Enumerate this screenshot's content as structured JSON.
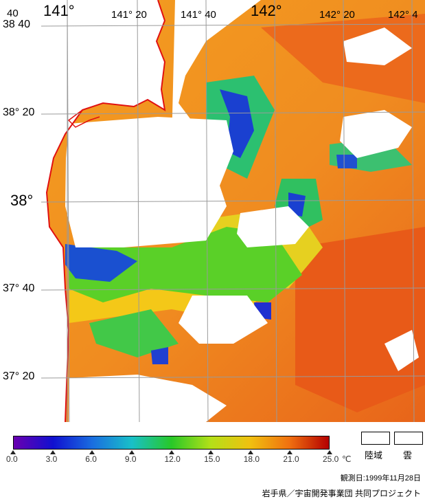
{
  "map": {
    "lon_labels": [
      {
        "text": "40",
        "size": "small"
      },
      {
        "text": "141°",
        "size": "big"
      },
      {
        "text": "141° 20",
        "size": "small"
      },
      {
        "text": "141° 40",
        "size": "small"
      },
      {
        "text": "142°",
        "size": "big"
      },
      {
        "text": "142° 20",
        "size": "small"
      },
      {
        "text": "142° 4",
        "size": "small"
      }
    ],
    "lat_labels": [
      {
        "text": "38  40"
      },
      {
        "text": "38° 20"
      },
      {
        "text": "38°"
      },
      {
        "text": "37° 40"
      },
      {
        "text": "37° 20"
      }
    ]
  },
  "colorbar": {
    "unit": "℃",
    "ticks": [
      "0.0",
      "3.0",
      "6.0",
      "9.0",
      "12.0",
      "15.0",
      "18.0",
      "21.0",
      "25.0"
    ],
    "colors": [
      "#6a00b0",
      "#1010d0",
      "#1a6ee0",
      "#19c0c8",
      "#28c828",
      "#b4e018",
      "#f0c010",
      "#f07010",
      "#b40000"
    ]
  },
  "legend": {
    "land": "陸域",
    "cloud": "雲"
  },
  "observation_date": "観測日:1999年11月28日",
  "credit": "岩手県／宇宙開発事業団 共同プロジェクト"
}
